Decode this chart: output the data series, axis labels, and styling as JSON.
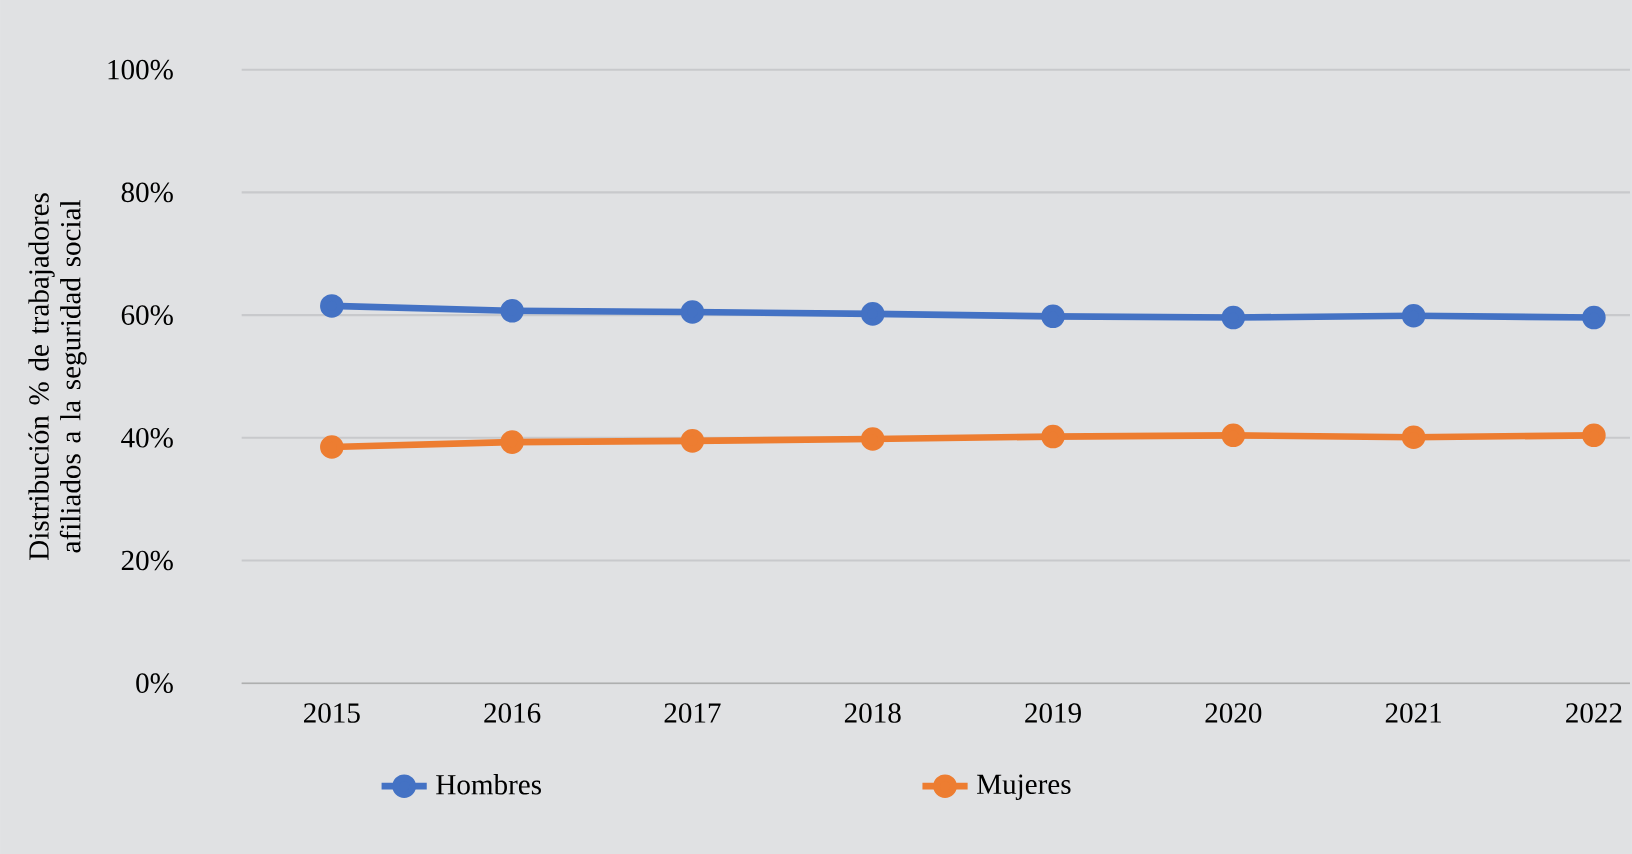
{
  "chart_data": {
    "type": "line",
    "ylabel": "Distribución % de trabajadores afiliados a la seguridad social",
    "categories": [
      "2015",
      "2016",
      "2017",
      "2018",
      "2019",
      "2020",
      "2021",
      "2022"
    ],
    "series": [
      {
        "name": "Hombres",
        "color": "#4472c4",
        "values": [
          61.5,
          60.7,
          60.5,
          60.2,
          59.8,
          59.6,
          59.9,
          59.6
        ]
      },
      {
        "name": "Mujeres",
        "color": "#ed7d31",
        "values": [
          38.5,
          39.3,
          39.5,
          39.8,
          40.2,
          40.4,
          40.1,
          40.4
        ]
      }
    ],
    "ylim": [
      0,
      100
    ],
    "yticks": [
      {
        "value": 0,
        "label": "0%"
      },
      {
        "value": 20,
        "label": "20%"
      },
      {
        "value": 40,
        "label": "40%"
      },
      {
        "value": 60,
        "label": "60%"
      },
      {
        "value": 80,
        "label": "80%"
      },
      {
        "value": 100,
        "label": "100%"
      }
    ],
    "grid": "y",
    "legend": "bottom",
    "marker": "circle",
    "line_style": "solid"
  }
}
